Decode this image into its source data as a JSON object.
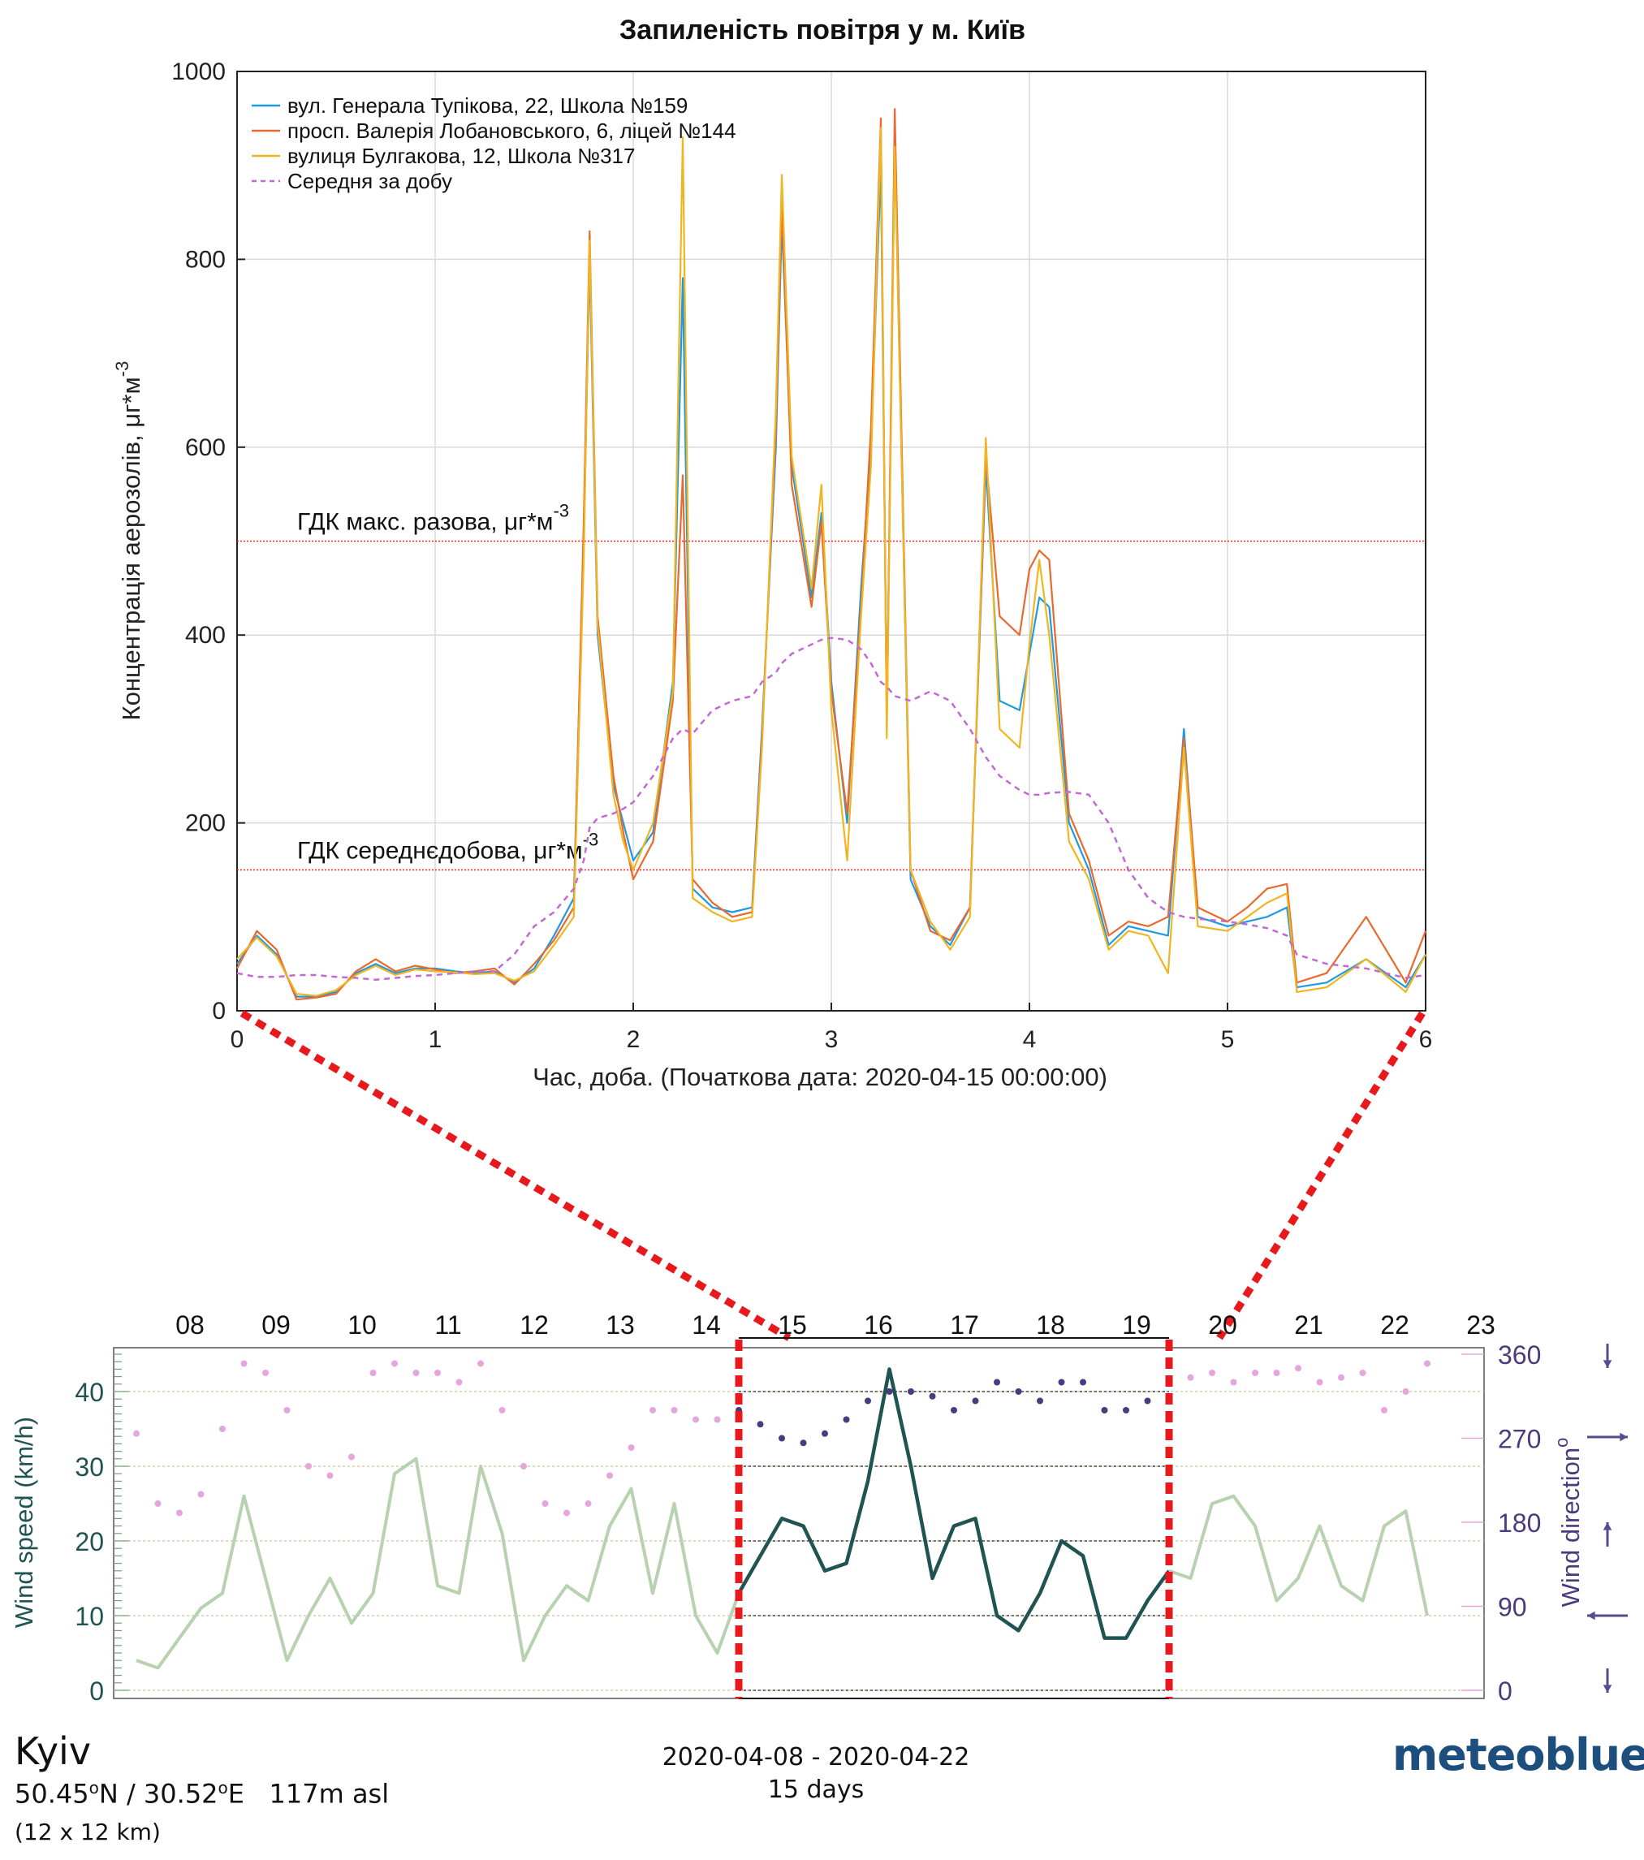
{
  "chart_data": [
    {
      "type": "line",
      "title": "Запиленість повітря у м. Київ",
      "xlabel": "Час, доба. (Початкова дата: 2020-04-15 00:00:00)",
      "ylabel": "Концентрація аерозолів, μг*м",
      "ylabel_sup": "-3",
      "xlim": [
        0,
        6
      ],
      "ylim": [
        0,
        1000
      ],
      "xticks": [
        0,
        1,
        2,
        3,
        4,
        5,
        6
      ],
      "yticks": [
        0,
        200,
        400,
        600,
        800,
        1000
      ],
      "grid": true,
      "legend_position": "top-left",
      "thresholds": [
        {
          "label": "ГДК макс. разова, μг*м",
          "sup": "-3",
          "value": 500,
          "color": "#ff2020"
        },
        {
          "label": "ГДК середнєдобова, μг*м",
          "sup": "-3",
          "value": 150,
          "color": "#ff2020"
        }
      ],
      "x": [
        0,
        0.1,
        0.2,
        0.3,
        0.4,
        0.5,
        0.6,
        0.7,
        0.8,
        0.9,
        1.0,
        1.1,
        1.2,
        1.3,
        1.4,
        1.5,
        1.6,
        1.7,
        1.75,
        1.78,
        1.82,
        1.9,
        1.95,
        2.0,
        2.1,
        2.2,
        2.25,
        2.3,
        2.4,
        2.5,
        2.6,
        2.65,
        2.72,
        2.75,
        2.8,
        2.9,
        2.95,
        3.0,
        3.08,
        3.15,
        3.2,
        3.25,
        3.28,
        3.32,
        3.4,
        3.5,
        3.6,
        3.7,
        3.78,
        3.85,
        3.95,
        4.0,
        4.05,
        4.1,
        4.2,
        4.3,
        4.4,
        4.5,
        4.6,
        4.7,
        4.78,
        4.85,
        5.0,
        5.1,
        5.2,
        5.3,
        5.35,
        5.5,
        5.7,
        5.9,
        6.0
      ],
      "series": [
        {
          "name": "вул. Генерала Тупікова, 22, Школа №159",
          "color": "#1f9ae0",
          "values": [
            50,
            80,
            60,
            15,
            15,
            20,
            40,
            50,
            40,
            45,
            45,
            42,
            40,
            42,
            30,
            45,
            80,
            120,
            500,
            800,
            400,
            240,
            200,
            160,
            190,
            350,
            780,
            130,
            110,
            105,
            110,
            300,
            600,
            840,
            580,
            440,
            530,
            350,
            200,
            450,
            600,
            900,
            310,
            930,
            140,
            90,
            70,
            110,
            580,
            330,
            320,
            380,
            440,
            430,
            200,
            150,
            70,
            90,
            85,
            80,
            300,
            100,
            90,
            95,
            100,
            110,
            25,
            30,
            55,
            25,
            60
          ]
        },
        {
          "name": "просп. Валерія Лобановського, 6, ліцей №144",
          "color": "#e86a2e",
          "values": [
            45,
            85,
            65,
            12,
            14,
            18,
            42,
            55,
            42,
            48,
            44,
            40,
            42,
            45,
            28,
            50,
            75,
            110,
            520,
            830,
            420,
            250,
            190,
            140,
            180,
            330,
            570,
            140,
            115,
            100,
            105,
            290,
            620,
            860,
            560,
            430,
            520,
            340,
            210,
            430,
            620,
            950,
            300,
            960,
            150,
            85,
            75,
            110,
            590,
            420,
            400,
            470,
            490,
            480,
            210,
            160,
            80,
            95,
            90,
            100,
            290,
            110,
            95,
            110,
            130,
            135,
            30,
            40,
            100,
            30,
            85
          ]
        },
        {
          "name": "вулиця Булгакова, 12, Школа №317",
          "color": "#f0b521",
          "values": [
            55,
            78,
            58,
            18,
            16,
            22,
            38,
            48,
            38,
            44,
            42,
            41,
            39,
            40,
            32,
            42,
            70,
            100,
            480,
            820,
            410,
            230,
            180,
            150,
            200,
            340,
            930,
            120,
            105,
            95,
            100,
            280,
            640,
            890,
            590,
            450,
            560,
            320,
            160,
            420,
            580,
            940,
            290,
            920,
            150,
            95,
            65,
            100,
            610,
            300,
            280,
            390,
            480,
            400,
            180,
            140,
            65,
            85,
            80,
            40,
            280,
            90,
            85,
            100,
            115,
            125,
            20,
            25,
            55,
            20,
            60
          ]
        },
        {
          "name": "Середня за добу",
          "color": "#c369d4",
          "dashed": true,
          "values": [
            40,
            36,
            36,
            38,
            38,
            36,
            35,
            33,
            35,
            37,
            38,
            40,
            42,
            42,
            60,
            90,
            105,
            130,
            160,
            195,
            205,
            210,
            215,
            222,
            250,
            290,
            300,
            295,
            320,
            330,
            335,
            350,
            360,
            370,
            380,
            390,
            395,
            397,
            395,
            385,
            370,
            350,
            345,
            335,
            330,
            340,
            330,
            300,
            270,
            250,
            235,
            230,
            230,
            232,
            233,
            230,
            200,
            150,
            120,
            105,
            100,
            98,
            95,
            92,
            88,
            80,
            60,
            50,
            45,
            35,
            38
          ]
        }
      ]
    },
    {
      "type": "line",
      "ylabel": "Wind speed (km/h)",
      "y2label": "Wind direction",
      "y2label_sup": "o",
      "ylim": [
        0,
        45
      ],
      "y2lim": [
        0,
        360
      ],
      "yticks": [
        0,
        10,
        20,
        30,
        40
      ],
      "y2ticks": [
        0,
        90,
        180,
        270,
        360
      ],
      "day_labels": [
        "08",
        "09",
        "10",
        "11",
        "12",
        "13",
        "14",
        "15",
        "16",
        "17",
        "18",
        "19",
        "20",
        "21",
        "22",
        "23"
      ],
      "x_days": [
        0,
        0.25,
        0.5,
        0.75,
        1,
        1.25,
        1.5,
        1.75,
        2,
        2.25,
        2.5,
        2.75,
        3,
        3.25,
        3.5,
        3.75,
        4,
        4.25,
        4.5,
        4.75,
        5,
        5.25,
        5.5,
        5.75,
        6,
        6.25,
        6.5,
        6.75,
        7,
        7.25,
        7.5,
        7.75,
        8,
        8.25,
        8.5,
        8.75,
        9,
        9.25,
        9.5,
        9.75,
        10,
        10.25,
        10.5,
        10.75,
        11,
        11.25,
        11.5,
        11.75,
        12,
        12.25,
        12.5,
        12.75,
        13,
        13.25,
        13.5,
        13.75,
        14,
        14.25,
        14.5,
        14.75,
        15
      ],
      "highlight_range_days": [
        7,
        12
      ],
      "series": [
        {
          "name": "Wind speed",
          "color_dim": "#b7d1b1",
          "color_bold": "#1f5452",
          "values": [
            4,
            3,
            7,
            11,
            13,
            26,
            15,
            4,
            10,
            15,
            9,
            13,
            29,
            31,
            14,
            13,
            30,
            21,
            4,
            10,
            14,
            12,
            22,
            27,
            13,
            25,
            10,
            5,
            13,
            18,
            23,
            22,
            16,
            17,
            28,
            43,
            30,
            15,
            22,
            23,
            10,
            8,
            13,
            20,
            18,
            7,
            7,
            12,
            16,
            15,
            25,
            26,
            22,
            12,
            15,
            22,
            14,
            12,
            22,
            24,
            10
          ]
        },
        {
          "name": "Wind direction",
          "color_dim": "#e3a6dd",
          "color_bold": "#4c3a7f",
          "values": [
            275,
            200,
            190,
            210,
            280,
            350,
            340,
            300,
            240,
            230,
            250,
            340,
            350,
            340,
            340,
            330,
            350,
            300,
            240,
            200,
            190,
            200,
            230,
            260,
            300,
            300,
            290,
            290,
            300,
            285,
            270,
            265,
            275,
            290,
            310,
            320,
            320,
            315,
            300,
            310,
            330,
            320,
            310,
            330,
            330,
            300,
            300,
            310,
            350,
            335,
            340,
            330,
            340,
            340,
            345,
            330,
            335,
            340,
            300,
            320,
            350
          ]
        }
      ]
    }
  ],
  "location": {
    "name": "Kyiv",
    "lat_deg": "50.45",
    "lat_dir": "N",
    "lon_deg": "30.52",
    "lon_dir": "E",
    "elevation": "117m asl",
    "grid": "(12 x 12 km)"
  },
  "period": {
    "range": "2020-04-08 - 2020-04-22",
    "length": "15 days"
  },
  "brand": "meteoblue",
  "colors": {
    "zoom_marker": "#e8191d",
    "arrow": "#5a4a8f"
  }
}
